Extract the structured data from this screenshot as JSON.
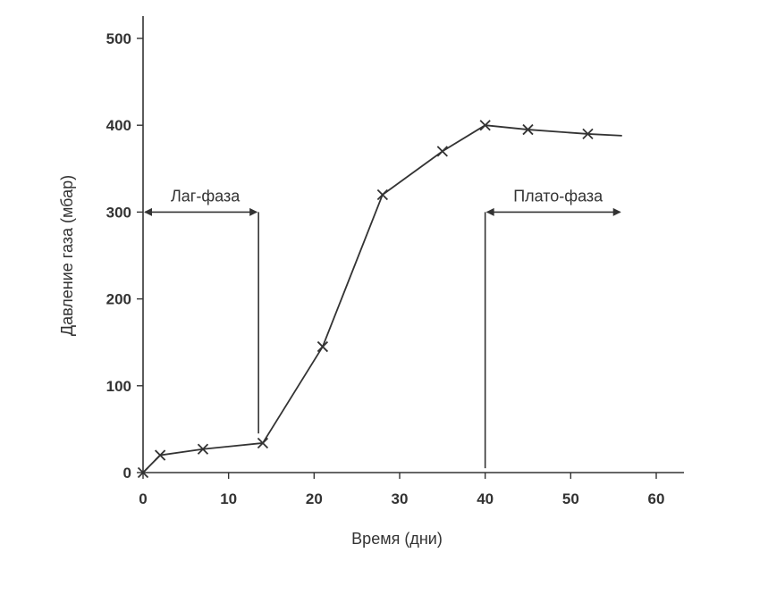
{
  "chart_data": {
    "type": "line",
    "title": "",
    "xlabel": "Время (дни)",
    "ylabel": "Давление газа (мбар)",
    "xlim": [
      0,
      60
    ],
    "ylim": [
      0,
      500
    ],
    "xticks": [
      0,
      10,
      20,
      30,
      40,
      50,
      60
    ],
    "yticks": [
      0,
      100,
      200,
      300,
      400,
      500
    ],
    "grid": false,
    "series": [
      {
        "marker": "x",
        "color": "#333333",
        "points": [
          [
            0,
            0
          ],
          [
            2,
            20
          ],
          [
            7,
            27
          ],
          [
            14,
            34
          ],
          [
            21,
            145
          ],
          [
            28,
            320
          ],
          [
            35,
            370
          ],
          [
            40,
            400
          ],
          [
            45,
            395
          ],
          [
            52,
            390
          ]
        ],
        "line_end": [
          56,
          388
        ]
      }
    ],
    "annotations": [
      {
        "label": "Лаг-фаза",
        "x_start": 0,
        "x_end": 13.5,
        "y": 300,
        "divider_x": 13.5,
        "divider_y_bottom": 45,
        "arrow": "both"
      },
      {
        "label": "Плато-фаза",
        "x_start": 40,
        "x_end": 56,
        "y": 300,
        "divider_x": 40,
        "divider_y_bottom": 5,
        "arrow": "both"
      }
    ]
  }
}
